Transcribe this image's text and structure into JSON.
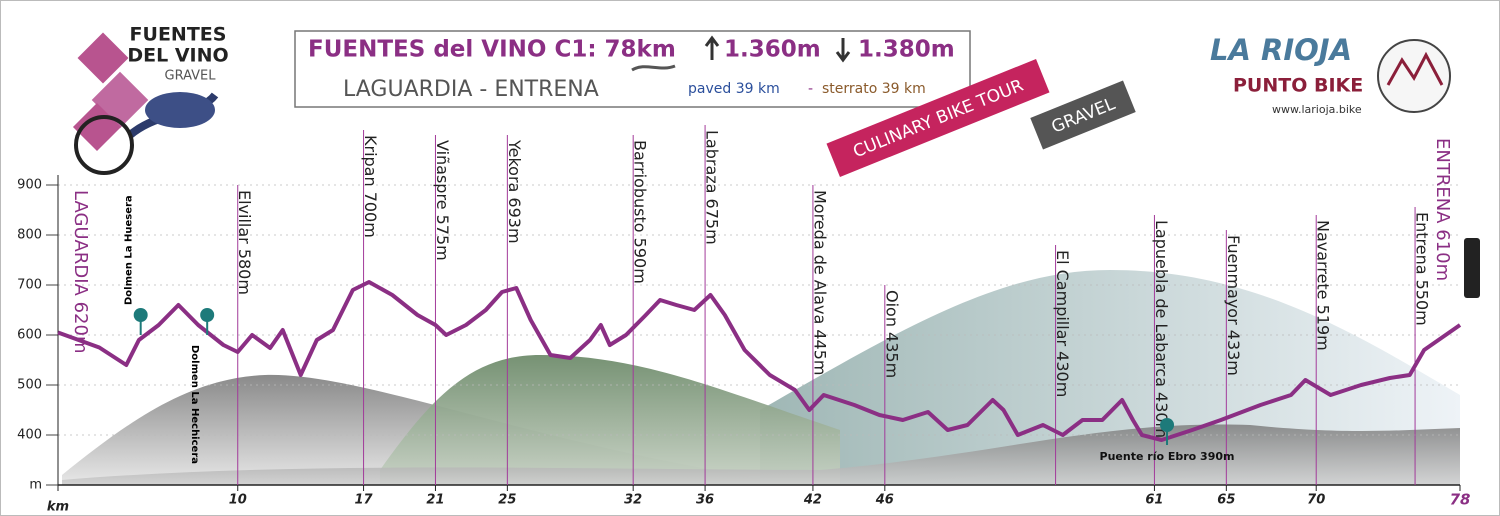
{
  "header": {
    "logo": [
      "FUENTES",
      "DEL VINO",
      "GRAVEL"
    ],
    "title": "FUENTES del VINO C1: 78km",
    "climb": "1.360m",
    "descent": "1.380m",
    "route": "LAGUARDIA - ENTRENA",
    "paved": "paved 39 km",
    "separator": "-",
    "sterrato": "sterrato 39 km",
    "brand": "LA RIOJA",
    "brand_sub": "PUNTO BIKE",
    "url": "www.larioja.bike",
    "badge_tour": "CULINARY BIKE TOUR",
    "badge_gravel": "GRAVEL"
  },
  "chart_data": {
    "type": "line",
    "color": "#8b2f84",
    "xlim": [
      0,
      78
    ],
    "ylim": [
      300,
      950
    ],
    "yticks": [
      {
        "value": 300,
        "label": "m"
      },
      400,
      500,
      600,
      700,
      800,
      900
    ],
    "xticks": [
      {
        "value": 0,
        "label": "km"
      },
      10,
      17,
      21,
      25,
      32,
      36,
      42,
      46,
      61,
      65,
      70,
      78
    ],
    "grid": true,
    "x": [
      0,
      2.3,
      3.8,
      4.5,
      5.6,
      6.7,
      7.8,
      9.2,
      10,
      10.8,
      11.8,
      12.5,
      13.5,
      14.4,
      15.3,
      16.4,
      17.3,
      18.6,
      20,
      21,
      21.6,
      22.7,
      23.8,
      24.7,
      25.5,
      26.3,
      27.4,
      28.5,
      29.6,
      30.2,
      30.7,
      31.6,
      32.7,
      33.5,
      34.4,
      35.4,
      36.3,
      37.1,
      38.2,
      39.6,
      41,
      41.8,
      42.6,
      44.3,
      45.7,
      47,
      48.4,
      49.5,
      50.6,
      52,
      52.6,
      53.4,
      54.8,
      55.9,
      57,
      58.1,
      59.2,
      59.8,
      60.3,
      61.4,
      63.1,
      64.7,
      66.9,
      68.6,
      69.4,
      70.8,
      72.5,
      74.1,
      75.2,
      76,
      78
    ],
    "values": [
      605,
      575,
      540,
      590,
      620,
      660,
      620,
      580,
      566,
      600,
      574,
      610,
      520,
      590,
      610,
      690,
      706,
      680,
      640,
      620,
      600,
      620,
      650,
      686,
      694,
      630,
      560,
      554,
      590,
      620,
      580,
      600,
      640,
      670,
      660,
      650,
      680,
      640,
      570,
      520,
      490,
      450,
      480,
      460,
      440,
      430,
      446,
      410,
      420,
      470,
      450,
      400,
      420,
      400,
      430,
      430,
      470,
      430,
      400,
      390,
      410,
      430,
      460,
      480,
      510,
      480,
      500,
      514,
      520,
      570,
      620
    ],
    "places": [
      {
        "label": "LAGUARDIA 620m",
        "km": 0
      },
      {
        "label": "Elvillar 580m",
        "km": 10
      },
      {
        "label": "Kripan 700m",
        "km": 17
      },
      {
        "label": "Viñaspre 575m",
        "km": 21
      },
      {
        "label": "Yekora 693m",
        "km": 25
      },
      {
        "label": "Barriobusto 590m",
        "km": 32
      },
      {
        "label": "Labraza 675m",
        "km": 36
      },
      {
        "label": "Moreda de Alava 445m",
        "km": 42
      },
      {
        "label": "Oion 435m",
        "km": 46
      },
      {
        "label": "El Campillar 430m",
        "km": 55.5
      },
      {
        "label": "Lapuebla de Labarca 430m",
        "km": 61
      },
      {
        "label": "Fuenmayor 433m",
        "km": 65
      },
      {
        "label": "Navarrete 519m",
        "km": 70
      },
      {
        "label": "Entrena 550m",
        "km": 75.5
      },
      {
        "label": "ENTRENA 610m",
        "km": 78
      }
    ],
    "pins": [
      {
        "label": "Dolmen La Huesera",
        "km": 4.6,
        "elevation": 640
      },
      {
        "label": "Dolmen La Hechicera",
        "km": 8.3,
        "elevation": 640
      },
      {
        "label": "Puente río Ebro 390m",
        "km": 61.7,
        "elevation": 420
      }
    ]
  }
}
